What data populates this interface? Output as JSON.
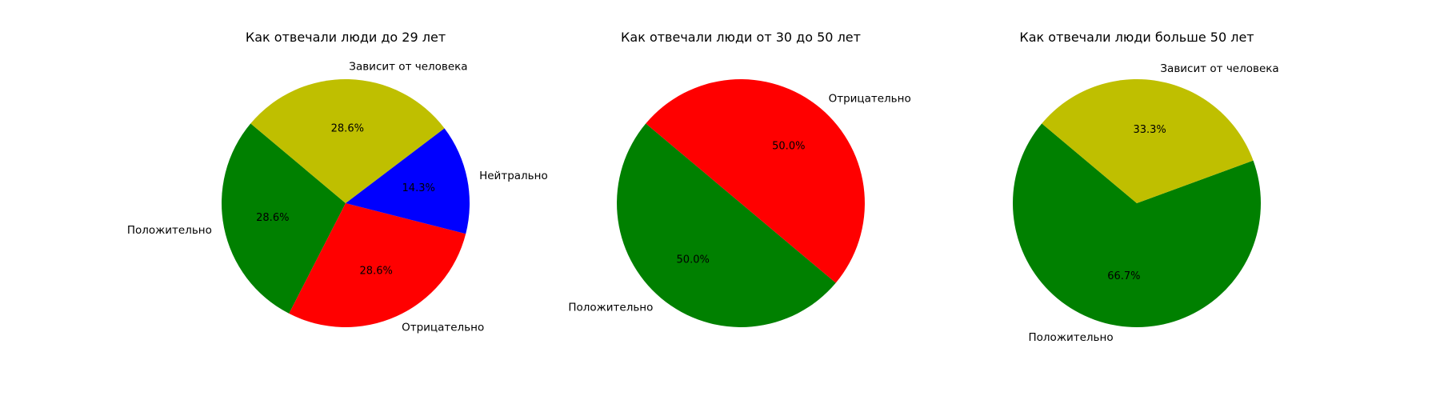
{
  "chart_data": [
    {
      "type": "pie",
      "title": "Как отвечали люди до 29 лет",
      "slices": [
        {
          "label": "Положительно",
          "value": 28.6,
          "pct_label": "28.6%",
          "color": "#008000"
        },
        {
          "label": "Отрицательно",
          "value": 28.6,
          "pct_label": "28.6%",
          "color": "#ff0000"
        },
        {
          "label": "Нейтрально",
          "value": 14.3,
          "pct_label": "14.3%",
          "color": "#0000ff"
        },
        {
          "label": "Зависит от человека",
          "value": 28.6,
          "pct_label": "28.6%",
          "color": "#bfbf00"
        }
      ]
    },
    {
      "type": "pie",
      "title": "Как отвечали люди от 30 до 50 лет",
      "slices": [
        {
          "label": "Положительно",
          "value": 50.0,
          "pct_label": "50.0%",
          "color": "#008000"
        },
        {
          "label": "Отрицательно",
          "value": 50.0,
          "pct_label": "50.0%",
          "color": "#ff0000"
        }
      ]
    },
    {
      "type": "pie",
      "title": "Как отвечали люди больше 50 лет",
      "slices": [
        {
          "label": "Положительно",
          "value": 66.7,
          "pct_label": "66.7%",
          "color": "#008000"
        },
        {
          "label": "Зависит от человека",
          "value": 33.3,
          "pct_label": "33.3%",
          "color": "#bfbf00"
        }
      ]
    }
  ]
}
